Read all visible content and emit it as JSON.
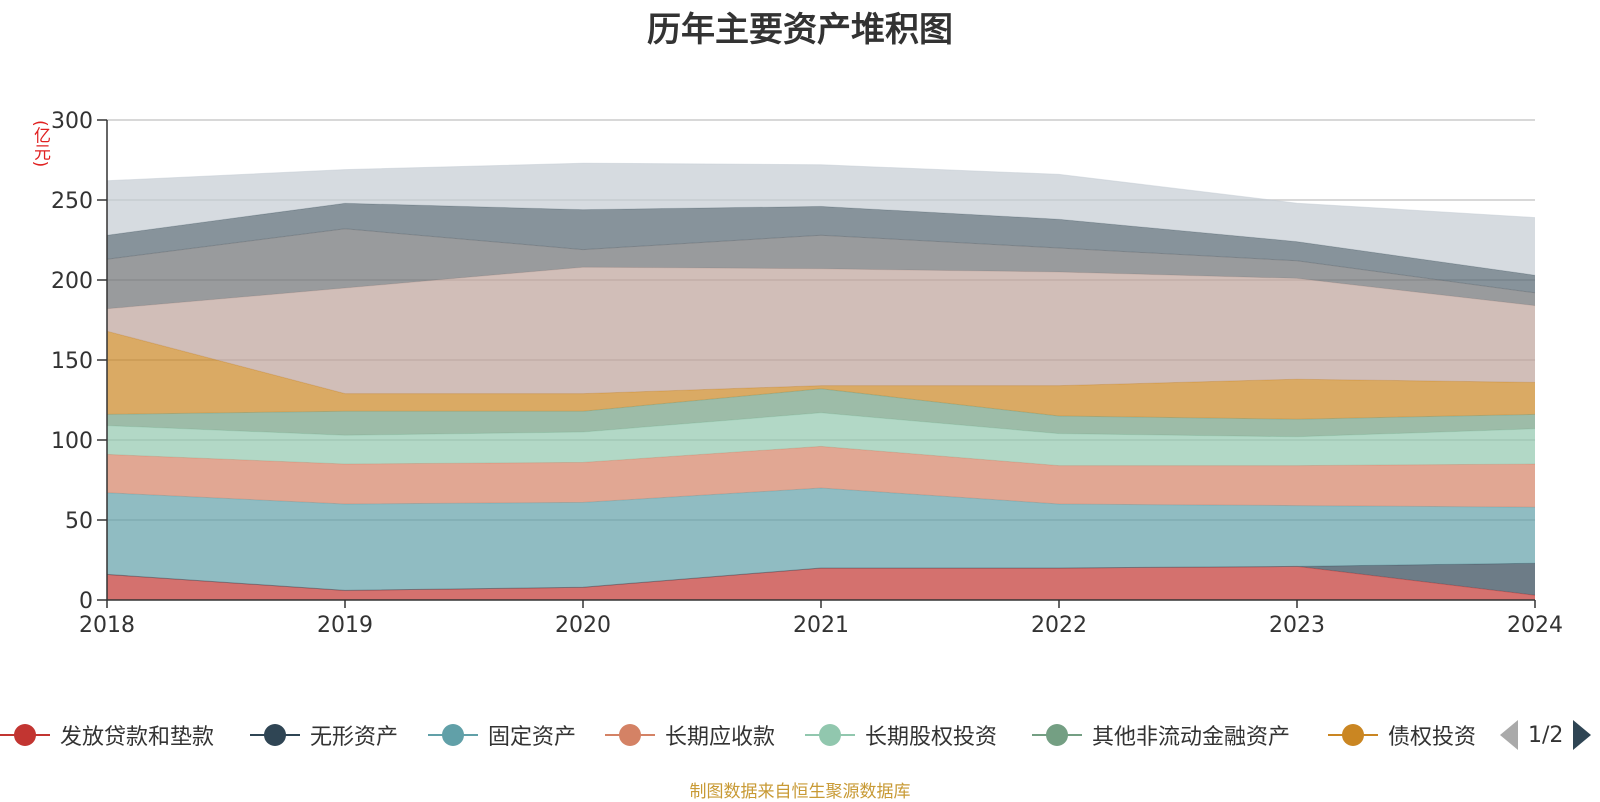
{
  "title": "历年主要资产堆积图",
  "unit_label": "(亿元)",
  "source_note": "制图数据来自恒生聚源数据库",
  "legend_pager": "1/2",
  "chart_data": {
    "type": "area",
    "stacked": true,
    "title": "历年主要资产堆积图",
    "ylabel": "(亿元)",
    "ylim": [
      0,
      300
    ],
    "yticks": [
      0,
      50,
      100,
      150,
      200,
      250,
      300
    ],
    "grid": true,
    "legend_position": "bottom",
    "categories": [
      "2018",
      "2019",
      "2020",
      "2021",
      "2022",
      "2023",
      "2024"
    ],
    "series": [
      {
        "name": "发放贷款和垫款",
        "color": "#c23531",
        "values": [
          16,
          6,
          8,
          20,
          20,
          21,
          3
        ]
      },
      {
        "name": "无形资产",
        "color": "#2f4554",
        "values": [
          0,
          0,
          0,
          0,
          0,
          0,
          20
        ]
      },
      {
        "name": "固定资产",
        "color": "#61a0a8",
        "values": [
          51,
          54,
          53,
          50,
          40,
          38,
          35
        ]
      },
      {
        "name": "长期应收款",
        "color": "#d48265",
        "values": [
          24,
          25,
          25,
          26,
          24,
          25,
          27
        ]
      },
      {
        "name": "长期股权投资",
        "color": "#91c7ae",
        "values": [
          18,
          18,
          19,
          21,
          20,
          18,
          22
        ]
      },
      {
        "name": "其他非流动金融资产",
        "color": "#749f83",
        "values": [
          7,
          15,
          13,
          15,
          11,
          11,
          9
        ]
      },
      {
        "name": "债权投资",
        "color": "#ca8622",
        "values": [
          52,
          11,
          11,
          2,
          19,
          25,
          20
        ]
      },
      {
        "name": "",
        "color": "#bda29a",
        "values": [
          14,
          66,
          79,
          73,
          71,
          63,
          48
        ]
      },
      {
        "name": "",
        "color": "#6e7074",
        "values": [
          31,
          37,
          11,
          21,
          15,
          11,
          8
        ]
      },
      {
        "name": "",
        "color": "#546570",
        "values": [
          15,
          16,
          25,
          18,
          18,
          12,
          11
        ]
      },
      {
        "name": "",
        "color": "#c4ccd3",
        "values": [
          34,
          21,
          29,
          26,
          28,
          24,
          36
        ]
      }
    ]
  }
}
